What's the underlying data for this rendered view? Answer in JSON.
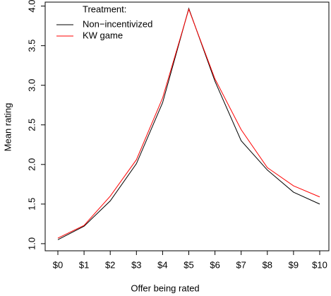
{
  "chart_data": {
    "type": "line",
    "x_label": "Offer being rated",
    "y_label": "Mean rating",
    "legend_title": "Treatment:",
    "legend_position": "top-left",
    "categories": [
      "$0",
      "$1",
      "$2",
      "$3",
      "$4",
      "$5",
      "$6",
      "$7",
      "$8",
      "$9",
      "$10"
    ],
    "series": [
      {
        "name": "Non−incentivized",
        "color": "#000000",
        "values": [
          1.05,
          1.22,
          1.54,
          2.01,
          2.78,
          3.97,
          3.05,
          2.3,
          1.93,
          1.65,
          1.5
        ]
      },
      {
        "name": "KW game",
        "color": "#ff0000",
        "values": [
          1.07,
          1.23,
          1.6,
          2.06,
          2.84,
          3.96,
          3.08,
          2.44,
          1.96,
          1.73,
          1.59
        ]
      }
    ],
    "ylim": [
      0.91,
      4.05
    ],
    "yticks": [
      {
        "value": 1,
        "label": "1.0"
      },
      1.5,
      {
        "value": 2,
        "label": "2.0"
      },
      2.5,
      {
        "value": 3,
        "label": "3.0"
      },
      3.5,
      {
        "value": 4,
        "label": "4.0"
      }
    ]
  }
}
